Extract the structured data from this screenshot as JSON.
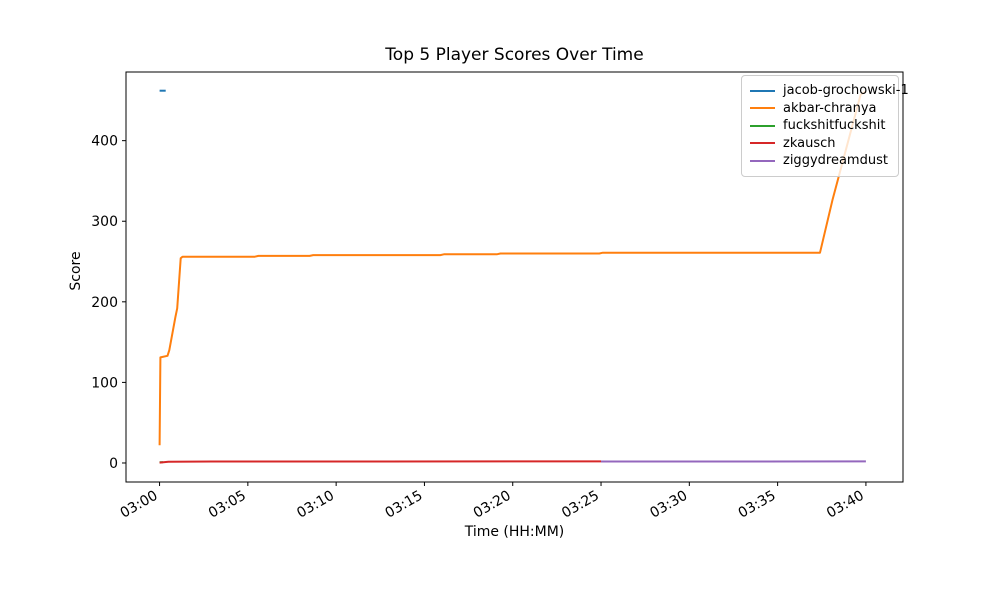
{
  "figure": {
    "title": "Top 5 Player Scores Over Time",
    "xlabel": "Time (HH:MM)",
    "ylabel": "Score"
  },
  "chart_data": {
    "type": "line",
    "title": "Top 5 Player Scores Over Time",
    "xlabel": "Time (HH:MM)",
    "ylabel": "Score",
    "x_unit": "minutes after 03:00",
    "xlim": [
      -1.9,
      42.1
    ],
    "ylim": [
      -23.6,
      485.2
    ],
    "grid": false,
    "legend_position": "upper right",
    "xticks": [
      {
        "t": 0,
        "label": "03:00"
      },
      {
        "t": 5,
        "label": "03:05"
      },
      {
        "t": 10,
        "label": "03:10"
      },
      {
        "t": 15,
        "label": "03:15"
      },
      {
        "t": 20,
        "label": "03:20"
      },
      {
        "t": 25,
        "label": "03:25"
      },
      {
        "t": 30,
        "label": "03:30"
      },
      {
        "t": 35,
        "label": "03:35"
      },
      {
        "t": 40,
        "label": "03:40"
      }
    ],
    "yticks": [
      {
        "v": 0,
        "label": "0"
      },
      {
        "v": 100,
        "label": "100"
      },
      {
        "v": 200,
        "label": "200"
      },
      {
        "v": 300,
        "label": "300"
      },
      {
        "v": 400,
        "label": "400"
      }
    ],
    "series": [
      {
        "name": "jacob-grochowski-1",
        "color": "#1f77b4",
        "points": [
          [
            0,
            462
          ],
          [
            0.35,
            462
          ]
        ]
      },
      {
        "name": "akbar-chranya",
        "color": "#ff7f0e",
        "points": [
          [
            0,
            22
          ],
          [
            0.05,
            131
          ],
          [
            0.45,
            133
          ],
          [
            0.55,
            140
          ],
          [
            0.9,
            181
          ],
          [
            1.0,
            192
          ],
          [
            1.2,
            254
          ],
          [
            1.3,
            256
          ],
          [
            5.4,
            256
          ],
          [
            5.6,
            257
          ],
          [
            8.5,
            257
          ],
          [
            8.7,
            258
          ],
          [
            15.9,
            258
          ],
          [
            16.1,
            259
          ],
          [
            19.1,
            259
          ],
          [
            19.3,
            260
          ],
          [
            24.9,
            260
          ],
          [
            25.1,
            261
          ],
          [
            30,
            261
          ],
          [
            37.4,
            261
          ],
          [
            38.1,
            326
          ],
          [
            39.7,
            457
          ],
          [
            40,
            461
          ]
        ]
      },
      {
        "name": "fuckshitfuckshit",
        "color": "#2ca02c",
        "points": [
          [
            0,
            1
          ],
          [
            0.2,
            1
          ]
        ]
      },
      {
        "name": "zkausch",
        "color": "#d62728",
        "points": [
          [
            0,
            0.5
          ],
          [
            0.5,
            1.5
          ],
          [
            3,
            1.8
          ],
          [
            25,
            2
          ]
        ]
      },
      {
        "name": "ziggydreamdust",
        "color": "#9467bd",
        "points": [
          [
            25,
            1.8
          ],
          [
            40,
            2
          ]
        ]
      }
    ]
  }
}
